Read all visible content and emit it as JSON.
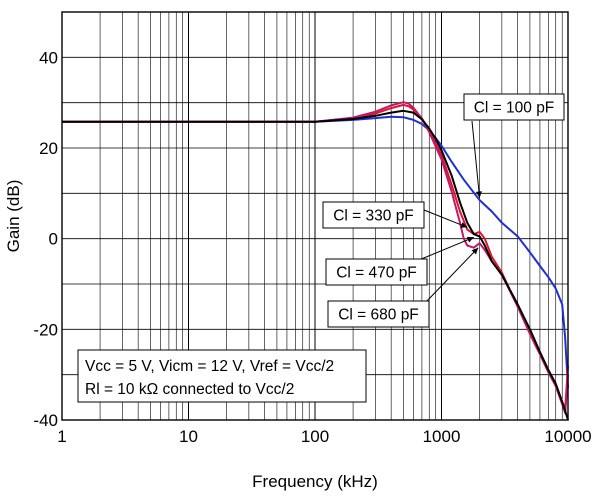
{
  "chart_data": {
    "type": "line",
    "title": "",
    "xlabel": "Frequency (kHz)",
    "ylabel": "Gain (dB)",
    "xscale": "log",
    "xlim": [
      1,
      10000
    ],
    "ylim": [
      -40,
      50
    ],
    "x_ticks": [
      1,
      10,
      100,
      1000,
      10000
    ],
    "x_tick_labels": [
      "1",
      "10",
      "100",
      "1000",
      "10000"
    ],
    "y_ticks": [
      -40,
      -20,
      0,
      20,
      40
    ],
    "y_tick_labels": [
      "-40",
      "-20",
      "0",
      "20",
      "40"
    ],
    "grid": true,
    "colors": {
      "cl_100": "#1f2fd1",
      "cl_330": "#e0142b",
      "cl_470": "#c0186a",
      "cl_680": "#000000"
    },
    "series": [
      {
        "name": "Cl = 100 pF",
        "color_key": "cl_100",
        "points": [
          [
            1,
            25.8
          ],
          [
            100,
            25.8
          ],
          [
            200,
            26.2
          ],
          [
            300,
            26.6
          ],
          [
            400,
            26.9
          ],
          [
            500,
            26.8
          ],
          [
            600,
            26.2
          ],
          [
            700,
            25.3
          ],
          [
            800,
            23.9
          ],
          [
            900,
            22.2
          ],
          [
            1000,
            20.5
          ],
          [
            1200,
            17.0
          ],
          [
            1500,
            13.0
          ],
          [
            2000,
            8.5
          ],
          [
            2500,
            6.0
          ],
          [
            3000,
            3.5
          ],
          [
            4000,
            0.5
          ],
          [
            5000,
            -3.0
          ],
          [
            6000,
            -6.0
          ],
          [
            7000,
            -8.5
          ],
          [
            8000,
            -11.0
          ],
          [
            9000,
            -14.5
          ],
          [
            9500,
            -22.0
          ],
          [
            10000,
            -33.0
          ]
        ]
      },
      {
        "name": "Cl = 330 pF",
        "color_key": "cl_330",
        "points": [
          [
            1,
            25.8
          ],
          [
            100,
            25.8
          ],
          [
            200,
            26.6
          ],
          [
            300,
            27.6
          ],
          [
            400,
            28.8
          ],
          [
            500,
            29.5
          ],
          [
            550,
            29.2
          ],
          [
            600,
            28.5
          ],
          [
            700,
            26.5
          ],
          [
            800,
            24.0
          ],
          [
            900,
            21.0
          ],
          [
            1000,
            18.5
          ],
          [
            1200,
            12.0
          ],
          [
            1400,
            6.0
          ],
          [
            1600,
            2.0
          ],
          [
            1800,
            1.0
          ],
          [
            2000,
            1.5
          ],
          [
            2200,
            0.0
          ],
          [
            2500,
            -4.0
          ],
          [
            3000,
            -7.5
          ],
          [
            4000,
            -15.0
          ],
          [
            5000,
            -20.0
          ],
          [
            6000,
            -25.0
          ],
          [
            7000,
            -29.0
          ],
          [
            8000,
            -32.0
          ],
          [
            9000,
            -36.0
          ],
          [
            9500,
            -37.5
          ],
          [
            10000,
            -28.0
          ]
        ]
      },
      {
        "name": "Cl = 470 pF",
        "color_key": "cl_470",
        "points": [
          [
            1,
            25.8
          ],
          [
            100,
            25.8
          ],
          [
            200,
            26.7
          ],
          [
            300,
            28.0
          ],
          [
            400,
            29.4
          ],
          [
            500,
            30.1
          ],
          [
            550,
            29.8
          ],
          [
            600,
            28.9
          ],
          [
            700,
            26.5
          ],
          [
            800,
            23.5
          ],
          [
            900,
            20.3
          ],
          [
            1000,
            17.5
          ],
          [
            1200,
            10.5
          ],
          [
            1400,
            3.5
          ],
          [
            1500,
            0.0
          ],
          [
            1600,
            -1.5
          ],
          [
            1800,
            -2.0
          ],
          [
            2000,
            -1.0
          ],
          [
            2200,
            -2.5
          ],
          [
            2500,
            -5.0
          ],
          [
            3000,
            -8.0
          ],
          [
            4000,
            -15.0
          ],
          [
            5000,
            -21.0
          ],
          [
            6000,
            -25.5
          ],
          [
            7000,
            -29.5
          ],
          [
            8000,
            -32.5
          ],
          [
            9000,
            -36.5
          ],
          [
            9500,
            -38.5
          ],
          [
            10000,
            -30.0
          ]
        ]
      },
      {
        "name": "Cl = 680 pF",
        "color_key": "cl_680",
        "points": [
          [
            1,
            25.8
          ],
          [
            100,
            25.8
          ],
          [
            200,
            26.4
          ],
          [
            300,
            27.1
          ],
          [
            400,
            27.8
          ],
          [
            500,
            28.2
          ],
          [
            600,
            27.8
          ],
          [
            700,
            26.3
          ],
          [
            800,
            24.3
          ],
          [
            900,
            22.0
          ],
          [
            1000,
            19.5
          ],
          [
            1200,
            14.0
          ],
          [
            1400,
            8.0
          ],
          [
            1600,
            3.5
          ],
          [
            1800,
            1.0
          ],
          [
            2000,
            0.5
          ],
          [
            2200,
            -1.5
          ],
          [
            2500,
            -5.0
          ],
          [
            3000,
            -8.0
          ],
          [
            4000,
            -14.5
          ],
          [
            5000,
            -20.0
          ],
          [
            6000,
            -25.0
          ],
          [
            7000,
            -29.0
          ],
          [
            8000,
            -32.0
          ],
          [
            9000,
            -36.0
          ],
          [
            9500,
            -38.0
          ],
          [
            10000,
            -40.0
          ]
        ]
      }
    ],
    "callouts": [
      {
        "text": "Cl = 100 pF",
        "target": [
          2000,
          9.0
        ]
      },
      {
        "text": "Cl = 330 pF",
        "target": [
          1600,
          2.5
        ]
      },
      {
        "text": "Cl = 470 pF",
        "target": [
          1800,
          0.3
        ]
      },
      {
        "text": "Cl = 680 pF",
        "target": [
          1950,
          -2.0
        ]
      }
    ],
    "conditions": [
      "Vcc = 5 V, Vicm = 12 V, Vref = Vcc/2",
      "Rl = 10 kΩ connected to Vcc/2"
    ]
  }
}
